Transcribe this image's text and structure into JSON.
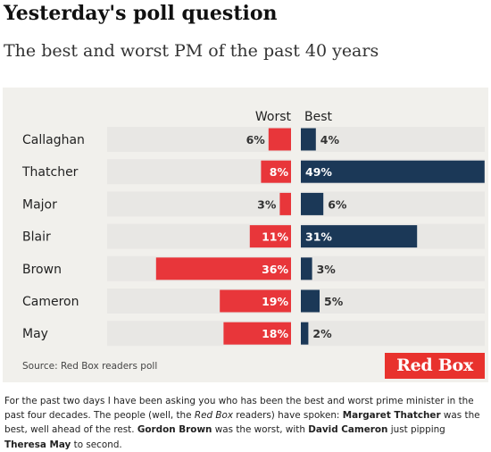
{
  "header": {
    "title": "Yesterday's poll question",
    "subtitle": "The best and worst PM of the past 40 years"
  },
  "chart_data": {
    "type": "bar",
    "orientation": "horizontal-diverging",
    "categories": [
      "Callaghan",
      "Thatcher",
      "Major",
      "Blair",
      "Brown",
      "Cameron",
      "May"
    ],
    "series": [
      {
        "name": "Worst",
        "values": [
          6,
          8,
          3,
          11,
          36,
          19,
          18
        ],
        "value_labels": [
          "6%",
          "8%",
          "3%",
          "11%",
          "36%",
          "19%",
          "18%"
        ],
        "color": "#e8363a"
      },
      {
        "name": "Best",
        "values": [
          4,
          49,
          6,
          31,
          3,
          5,
          2
        ],
        "value_labels": [
          "4%",
          "49%",
          "6%",
          "31%",
          "3%",
          "5%",
          "2%"
        ],
        "color": "#1b3857"
      }
    ],
    "unit": "%",
    "source": "Source: Red Box readers poll",
    "legend": "top-center",
    "grid": false
  },
  "brand": {
    "logo_text": "Red Box",
    "logo_color": "#e8322d"
  },
  "caption": {
    "p1": "For the past two days I have been asking you who has been the best and worst prime minister in the past four decades. The people (well, the ",
    "p2": "Red Box",
    "p3": " readers) have spoken: ",
    "p4": "Margaret Thatcher",
    "p5": " was the best, well ahead of the rest. ",
    "p6": "Gordon Brown",
    "p7": " was the worst, with ",
    "p8": "David Cameron",
    "p9": " just pipping ",
    "p10": "Theresa May",
    "p11": " to second."
  }
}
